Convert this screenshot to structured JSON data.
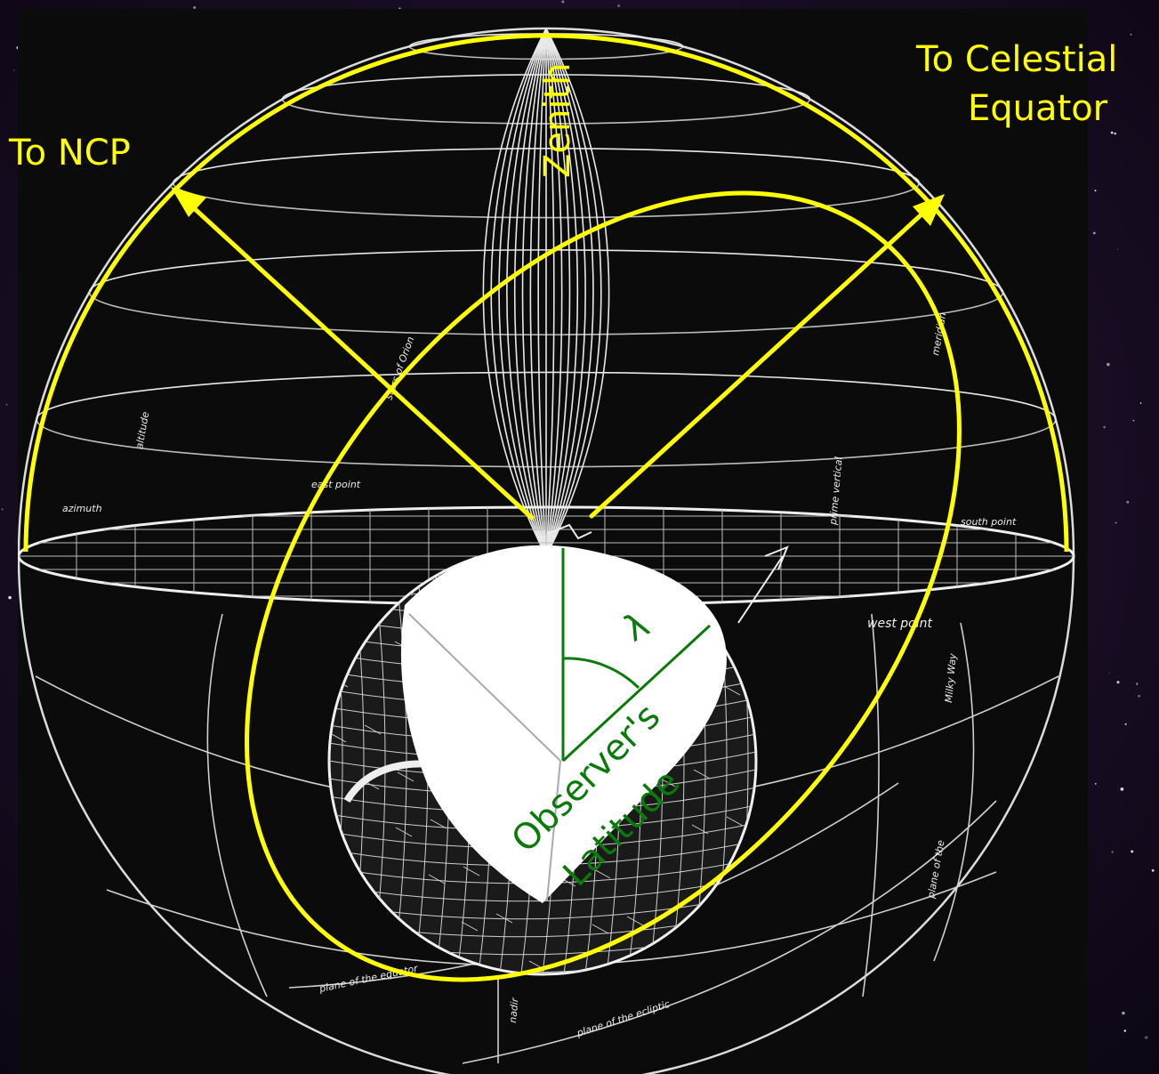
{
  "colors": {
    "annotation": "#ffff00",
    "angle": "#0a7a0a",
    "chalk": "#eeeeee",
    "panel": "#0b0b0b",
    "backdrop": "#1a0f28",
    "cutaway": "#ffffff"
  },
  "labels": {
    "to_ncp": "To NCP",
    "to_celestial_equator_line1": "To Celestial",
    "to_celestial_equator_line2": "Equator",
    "zenith": "Zenith",
    "lambda": "λ",
    "observers": "Observer's",
    "latitude": "Latitude"
  },
  "chalk_labels": {
    "altitude": "altitude",
    "azimuth": "azimuth",
    "east_point": "east point",
    "south_point": "south point",
    "west_point": "west point",
    "prime_vertical": "prime vertical",
    "meridian": "meridian",
    "milky_way": "Milky Way",
    "plane_of_the_equator": "plane of the equator",
    "plane_of_the_ecliptic": "plane of the ecliptic",
    "nadir": "nadir",
    "plane_of_the": "plane of the",
    "stars": "stars of Orion"
  }
}
